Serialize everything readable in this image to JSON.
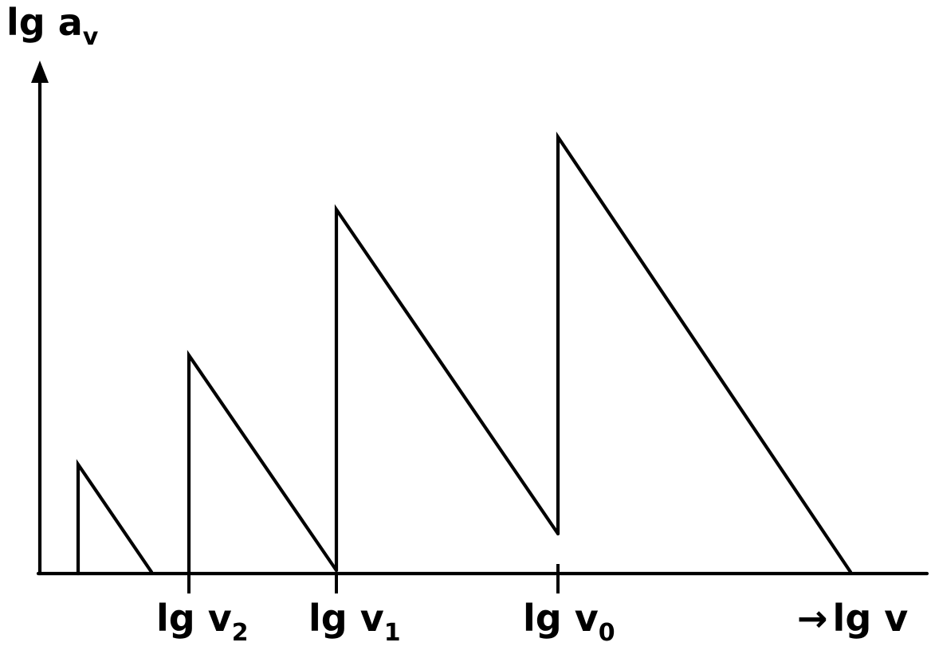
{
  "y_axis": {
    "label_main": "lg a",
    "label_sub": "v"
  },
  "x_axis": {
    "label_arrow": "→",
    "label_main": "lg v"
  },
  "ticks": [
    {
      "main": "lg v",
      "sub": "2"
    },
    {
      "main": "lg v",
      "sub": "1"
    },
    {
      "main": "lg v",
      "sub": "0"
    }
  ],
  "colors": {
    "ink": "#000000",
    "background": "#ffffff"
  }
}
